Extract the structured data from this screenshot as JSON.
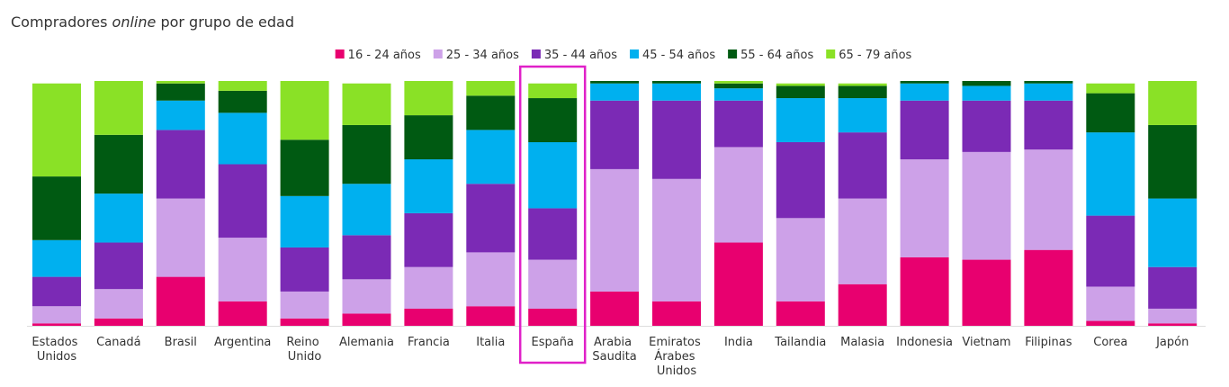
{
  "chart_data": {
    "type": "stacked_bar",
    "title": [
      "Compradores",
      "online",
      "por grupo de edad"
    ],
    "categories": [
      "Estados Unidos",
      "Canadá",
      "Brasil",
      "Argentina",
      "Reino Unido",
      "Alemania",
      "Francia",
      "Italia",
      "España",
      "Arabia Saudita",
      "Emiratos Árabes Unidos",
      "India",
      "Tailandia",
      "Malasia",
      "Indonesia",
      "Vietnam",
      "Filipinas",
      "Corea",
      "Japón"
    ],
    "series": [
      {
        "name": "16 - 24 años",
        "color": "#e8006f",
        "values": [
          1,
          3,
          20,
          10,
          3,
          5,
          7,
          8,
          7,
          14,
          10,
          34,
          10,
          17,
          28,
          27,
          31,
          2,
          1
        ]
      },
      {
        "name": "25 - 34 años",
        "color": "#cda1e8",
        "values": [
          7,
          12,
          32,
          26,
          11,
          14,
          17,
          22,
          20,
          50,
          50,
          39,
          34,
          35,
          40,
          44,
          41,
          14,
          6
        ]
      },
      {
        "name": "35 - 44 años",
        "color": "#7b2ab5",
        "values": [
          12,
          19,
          28,
          30,
          18,
          18,
          22,
          28,
          21,
          28,
          32,
          19,
          31,
          27,
          24,
          21,
          20,
          29,
          17
        ]
      },
      {
        "name": "45 - 54 años",
        "color": "#00b0ef",
        "values": [
          15,
          20,
          12,
          21,
          21,
          21,
          22,
          22,
          27,
          7,
          7,
          5,
          18,
          14,
          7,
          6,
          7,
          34,
          28
        ]
      },
      {
        "name": "55 - 64 años",
        "color": "#005a12",
        "values": [
          26,
          24,
          7,
          9,
          23,
          24,
          18,
          14,
          18,
          1,
          1,
          2,
          5,
          5,
          1,
          2,
          1,
          16,
          30
        ]
      },
      {
        "name": "65 - 79 años",
        "color": "#8ae126",
        "values": [
          38,
          22,
          1,
          4,
          24,
          17,
          14,
          6,
          6,
          0,
          0,
          1,
          1,
          1,
          0,
          0,
          0,
          4,
          18
        ]
      }
    ],
    "ylim": [
      0,
      100
    ],
    "highlight": "España",
    "legend": "top"
  }
}
